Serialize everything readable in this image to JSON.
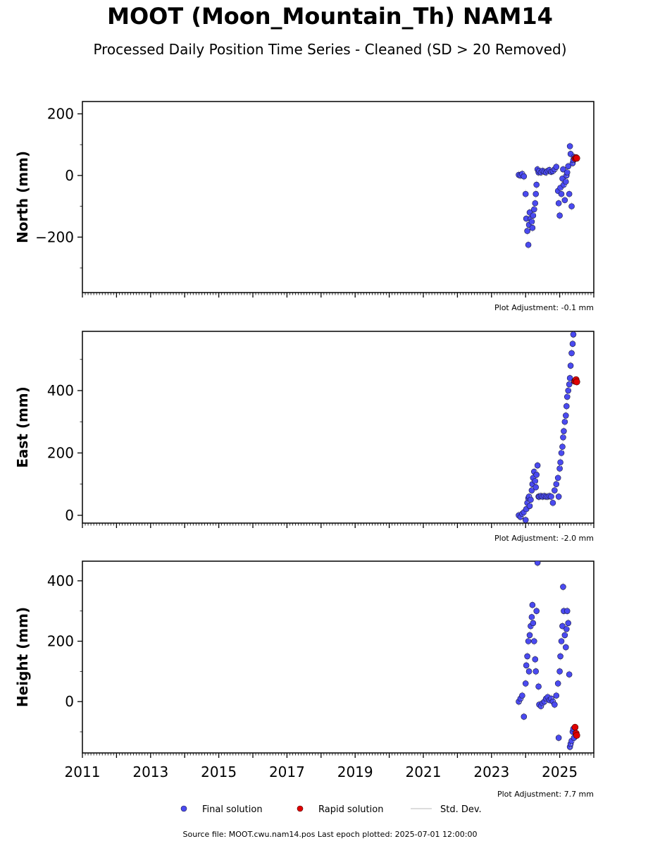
{
  "title": "MOOT (Moon_Mountain_Th) NAM14",
  "subtitle": "Processed Daily Position Time Series - Cleaned (SD > 20 Removed)",
  "footer": "Source file: MOOT.cwu.nam14.pos  Last epoch plotted: 2025-07-01 12:00:00",
  "colors": {
    "final": "#4a4af0",
    "final_edge": "#1a1a40",
    "rapid": "#e00000",
    "stddev": "#d0d0d0"
  },
  "legend": {
    "placement": "bottom-center",
    "items": [
      {
        "label": "Final solution",
        "kind": "final"
      },
      {
        "label": "Rapid solution",
        "kind": "rapid"
      },
      {
        "label": "Std. Dev.",
        "kind": "stddev"
      }
    ]
  },
  "chart_data": [
    {
      "type": "scatter",
      "ylabel": "North (mm)",
      "adjustment": "Plot Adjustment: -0.1 mm",
      "xlim": [
        2011,
        2026
      ],
      "xticks": [
        2011,
        2013,
        2015,
        2017,
        2019,
        2021,
        2023,
        2025
      ],
      "ylim": [
        -380,
        240
      ],
      "yticks": [
        200,
        0,
        -200
      ],
      "ytick_labels": [
        "200",
        "0",
        "−200"
      ],
      "series": [
        {
          "name": "Final solution",
          "x": [
            2023.8,
            2023.85,
            2023.9,
            2023.95,
            2024.0,
            2024.02,
            2024.05,
            2024.08,
            2024.1,
            2024.12,
            2024.15,
            2024.18,
            2024.2,
            2024.22,
            2024.25,
            2024.28,
            2024.3,
            2024.32,
            2024.35,
            2024.38,
            2024.4,
            2024.45,
            2024.5,
            2024.55,
            2024.6,
            2024.65,
            2024.7,
            2024.75,
            2024.8,
            2024.85,
            2024.9,
            2024.95,
            2024.97,
            2025.0,
            2025.02,
            2025.05,
            2025.08,
            2025.1,
            2025.12,
            2025.15,
            2025.18,
            2025.2,
            2025.22,
            2025.25,
            2025.28,
            2025.3,
            2025.32,
            2025.35,
            2025.38,
            2025.4,
            2025.42
          ],
          "y": [
            2,
            0,
            5,
            -3,
            -60,
            -140,
            -180,
            -225,
            -160,
            -120,
            -140,
            -150,
            -170,
            -130,
            -110,
            -90,
            -60,
            -30,
            20,
            10,
            15,
            10,
            15,
            12,
            10,
            15,
            18,
            12,
            14,
            20,
            28,
            -50,
            -90,
            -130,
            -40,
            -60,
            -10,
            20,
            -30,
            -80,
            -20,
            0,
            10,
            30,
            -60,
            95,
            70,
            -100,
            40,
            50,
            60
          ]
        }
      ],
      "rapid": {
        "x": [
          2025.45,
          2025.48,
          2025.5
        ],
        "y": [
          55,
          58,
          56
        ]
      }
    },
    {
      "type": "scatter",
      "ylabel": "East (mm)",
      "adjustment": "Plot Adjustment: -2.0 mm",
      "xlim": [
        2011,
        2026
      ],
      "xticks": [
        2011,
        2013,
        2015,
        2017,
        2019,
        2021,
        2023,
        2025
      ],
      "ylim": [
        -25,
        590
      ],
      "yticks": [
        400,
        200,
        0
      ],
      "ytick_labels": [
        "400",
        "200",
        "0"
      ],
      "series": [
        {
          "name": "Final solution",
          "x": [
            2023.8,
            2023.85,
            2023.9,
            2023.95,
            2024.0,
            2024.02,
            2024.05,
            2024.08,
            2024.1,
            2024.12,
            2024.15,
            2024.18,
            2024.2,
            2024.22,
            2024.25,
            2024.28,
            2024.3,
            2024.32,
            2024.35,
            2024.38,
            2024.4,
            2024.45,
            2024.5,
            2024.55,
            2024.6,
            2024.65,
            2024.7,
            2024.75,
            2024.8,
            2024.85,
            2024.9,
            2024.95,
            2024.97,
            2025.0,
            2025.02,
            2025.05,
            2025.08,
            2025.1,
            2025.12,
            2025.15,
            2025.18,
            2025.2,
            2025.22,
            2025.25,
            2025.28,
            2025.3,
            2025.32,
            2025.35,
            2025.38,
            2025.4,
            2025.42
          ],
          "y": [
            0,
            -5,
            5,
            10,
            -15,
            20,
            40,
            55,
            60,
            30,
            50,
            80,
            100,
            120,
            140,
            110,
            90,
            130,
            160,
            60,
            60,
            62,
            60,
            62,
            60,
            60,
            62,
            60,
            40,
            80,
            100,
            120,
            60,
            150,
            170,
            200,
            220,
            250,
            270,
            300,
            320,
            350,
            380,
            400,
            420,
            440,
            480,
            520,
            550,
            580,
            430
          ]
        }
      ],
      "rapid": {
        "x": [
          2025.45,
          2025.48,
          2025.5
        ],
        "y": [
          430,
          435,
          428
        ]
      }
    },
    {
      "type": "scatter",
      "ylabel": "Height (mm)",
      "adjustment": "Plot Adjustment: 7.7 mm",
      "xlim": [
        2011,
        2026
      ],
      "xticks": [
        2011,
        2013,
        2015,
        2017,
        2019,
        2021,
        2023,
        2025
      ],
      "xtick_labels": [
        "2011",
        "2013",
        "2015",
        "2017",
        "2019",
        "2021",
        "2023",
        "2025"
      ],
      "ylim": [
        -170,
        465
      ],
      "yticks": [
        400,
        200,
        0
      ],
      "ytick_labels": [
        "400",
        "200",
        "0"
      ],
      "series": [
        {
          "name": "Final solution",
          "x": [
            2023.8,
            2023.85,
            2023.9,
            2023.95,
            2024.0,
            2024.02,
            2024.05,
            2024.08,
            2024.1,
            2024.12,
            2024.15,
            2024.18,
            2024.2,
            2024.22,
            2024.25,
            2024.28,
            2024.3,
            2024.32,
            2024.35,
            2024.38,
            2024.4,
            2024.45,
            2024.5,
            2024.55,
            2024.6,
            2024.65,
            2024.7,
            2024.75,
            2024.8,
            2024.85,
            2024.9,
            2024.95,
            2024.97,
            2025.0,
            2025.02,
            2025.05,
            2025.08,
            2025.1,
            2025.12,
            2025.15,
            2025.18,
            2025.2,
            2025.22,
            2025.25,
            2025.28,
            2025.3,
            2025.32,
            2025.35,
            2025.38,
            2025.4,
            2025.42
          ],
          "y": [
            0,
            10,
            20,
            -50,
            60,
            120,
            150,
            200,
            100,
            220,
            250,
            280,
            320,
            260,
            200,
            140,
            100,
            300,
            460,
            50,
            -10,
            -15,
            -5,
            0,
            10,
            15,
            5,
            10,
            0,
            -10,
            20,
            60,
            -120,
            100,
            150,
            200,
            250,
            380,
            300,
            220,
            180,
            240,
            300,
            260,
            90,
            -150,
            -140,
            -130,
            -100,
            -90,
            -120
          ]
        }
      ],
      "rapid": {
        "x": [
          2025.45,
          2025.48,
          2025.5
        ],
        "y": [
          -85,
          -105,
          -112
        ]
      }
    }
  ]
}
